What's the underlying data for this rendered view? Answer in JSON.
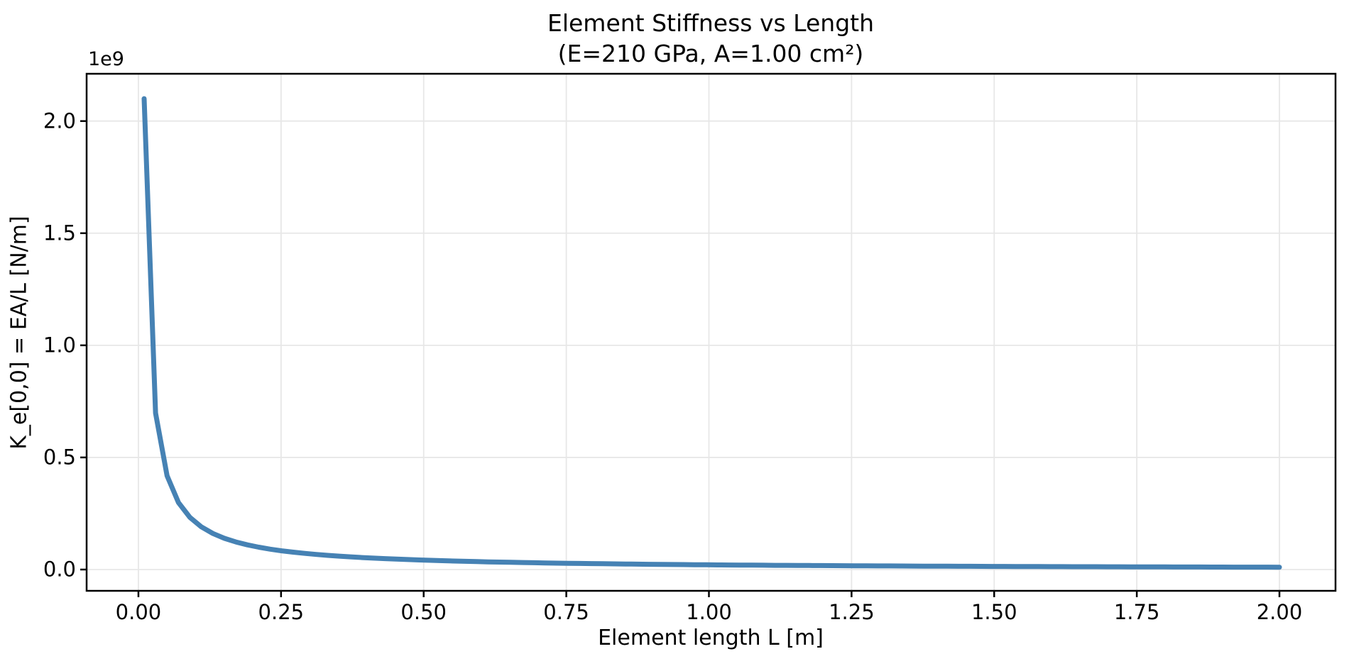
{
  "figure": {
    "title": "Element Stiffness vs Length",
    "subtitle": "(E=210 GPa, A=1.00 cm²)",
    "xlabel": "Element length L [m]",
    "ylabel": "K_e[0,0] = EA/L [N/m]",
    "y_offset_text": "1e9"
  },
  "colors": {
    "line": "#4682b4",
    "grid": "#e7e7e7",
    "axis": "#000000",
    "text": "#000000",
    "background": "#ffffff"
  },
  "chart_data": {
    "type": "line",
    "title": "Element Stiffness vs Length (E=210 GPa, A=1.00 cm²)",
    "xlabel": "Element length L [m]",
    "ylabel": "K_e[0,0] = EA/L [N/m]",
    "y_offset_label": "1e9",
    "y_values_unit": "1e9 N/m",
    "grid": true,
    "legend": false,
    "xlim": [
      -0.0908,
      2.0983
    ],
    "ylim": [
      -0.0949,
      2.211
    ],
    "x_ticks": [
      0,
      0.25,
      0.5,
      0.75,
      1.0,
      1.25,
      1.5,
      1.75,
      2.0
    ],
    "x_tick_labels": [
      "0.00",
      "0.25",
      "0.50",
      "0.75",
      "1.00",
      "1.25",
      "1.50",
      "1.75",
      "2.00"
    ],
    "y_ticks": [
      0,
      0.5,
      1.0,
      1.5,
      2.0
    ],
    "y_tick_labels": [
      "0.0",
      "0.5",
      "1.0",
      "1.5",
      "2.0"
    ],
    "series": [
      {
        "x": [
          0.01,
          0.0301,
          0.0502,
          0.0703,
          0.0904,
          0.1105,
          0.1306,
          0.1507,
          0.1708,
          0.1909,
          0.211,
          0.2311,
          0.2512,
          0.2713,
          0.2914,
          0.3115,
          0.3316,
          0.3517,
          0.3718,
          0.3919,
          0.412,
          0.4321,
          0.4522,
          0.4723,
          0.4924,
          0.5125,
          0.5326,
          0.5527,
          0.5728,
          0.5929,
          0.613,
          0.6331,
          0.6532,
          0.6733,
          0.6934,
          0.7135,
          0.7336,
          0.7537,
          0.7738,
          0.7939,
          0.814,
          0.8341,
          0.8542,
          0.8743,
          0.8944,
          0.9145,
          0.9346,
          0.9547,
          0.9748,
          0.9949,
          1.0151,
          1.0352,
          1.0553,
          1.0754,
          1.0955,
          1.1156,
          1.1357,
          1.1558,
          1.1759,
          1.196,
          1.2161,
          1.2362,
          1.2563,
          1.2764,
          1.2965,
          1.3166,
          1.3367,
          1.3568,
          1.3769,
          1.397,
          1.4171,
          1.4372,
          1.4573,
          1.4774,
          1.4975,
          1.5176,
          1.5377,
          1.5578,
          1.5779,
          1.598,
          1.6181,
          1.6382,
          1.6583,
          1.6784,
          1.6985,
          1.7186,
          1.7387,
          1.7588,
          1.7789,
          1.799,
          1.8191,
          1.8392,
          1.8593,
          1.8794,
          1.8995,
          1.9196,
          1.9397,
          1.9598,
          1.9799,
          2.0
        ],
        "y": [
          2.1,
          0.6977,
          0.4183,
          0.2987,
          0.2323,
          0.19,
          0.1608,
          0.1393,
          0.1229,
          0.11,
          0.0995,
          0.0909,
          0.0836,
          0.0774,
          0.0721,
          0.0674,
          0.0633,
          0.0597,
          0.0565,
          0.0536,
          0.051,
          0.0486,
          0.0464,
          0.0445,
          0.0426,
          0.041,
          0.0394,
          0.038,
          0.0367,
          0.0354,
          0.0343,
          0.0332,
          0.0322,
          0.0312,
          0.0303,
          0.0294,
          0.0286,
          0.0279,
          0.0271,
          0.0265,
          0.0258,
          0.0252,
          0.0246,
          0.024,
          0.0235,
          0.023,
          0.0225,
          0.022,
          0.0215,
          0.0211,
          0.0207,
          0.0203,
          0.0199,
          0.0195,
          0.0192,
          0.0188,
          0.0185,
          0.0182,
          0.0179,
          0.0176,
          0.0173,
          0.017,
          0.0167,
          0.0164,
          0.0162,
          0.016,
          0.0157,
          0.0155,
          0.0153,
          0.015,
          0.0148,
          0.0146,
          0.0144,
          0.0142,
          0.014,
          0.0138,
          0.0137,
          0.0135,
          0.0133,
          0.0131,
          0.013,
          0.0128,
          0.0127,
          0.0125,
          0.0124,
          0.0122,
          0.0121,
          0.0119,
          0.0118,
          0.0117,
          0.0115,
          0.0114,
          0.0113,
          0.0112,
          0.0111,
          0.0109,
          0.0108,
          0.0107,
          0.0106,
          0.0105
        ]
      }
    ]
  }
}
